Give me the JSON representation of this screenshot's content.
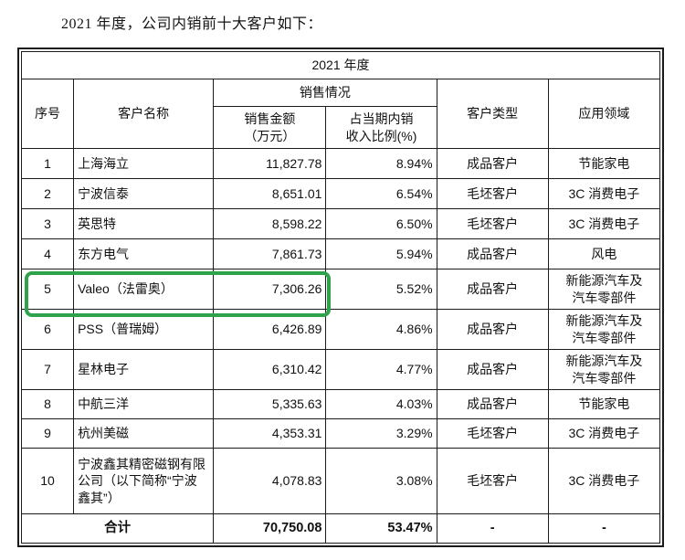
{
  "page": {
    "title": "2021 年度，公司内销前十大客户如下："
  },
  "table": {
    "year_header": "2021 年度",
    "columns": {
      "index": "序号",
      "customer": "客户名称",
      "sales_group": "销售情况",
      "sales_amount": "销售金额\n（万元）",
      "sales_ratio": "占当期内销\n收入比例(%)",
      "customer_type": "客户类型",
      "application": "应用领域"
    },
    "rows": [
      {
        "index": "1",
        "name": "上海海立",
        "amount": "11,827.78",
        "ratio": "8.94%",
        "type": "成品客户",
        "application": "节能家电"
      },
      {
        "index": "2",
        "name": "宁波信泰",
        "amount": "8,651.01",
        "ratio": "6.54%",
        "type": "毛坯客户",
        "application": "3C 消费电子"
      },
      {
        "index": "3",
        "name": "英思特",
        "amount": "8,598.22",
        "ratio": "6.50%",
        "type": "毛坯客户",
        "application": "3C 消费电子"
      },
      {
        "index": "4",
        "name": "东方电气",
        "amount": "7,861.73",
        "ratio": "5.94%",
        "type": "成品客户",
        "application": "风电"
      },
      {
        "index": "5",
        "name": "Valeo（法雷奥）",
        "amount": "7,306.26",
        "ratio": "5.52%",
        "type": "成品客户",
        "application": "新能源汽车及\n汽车零部件"
      },
      {
        "index": "6",
        "name": "PSS（普瑞姆）",
        "amount": "6,426.89",
        "ratio": "4.86%",
        "type": "成品客户",
        "application": "新能源汽车及\n汽车零部件"
      },
      {
        "index": "7",
        "name": "星林电子",
        "amount": "6,310.42",
        "ratio": "4.77%",
        "type": "成品客户",
        "application": "新能源汽车及\n汽车零部件"
      },
      {
        "index": "8",
        "name": "中航三洋",
        "amount": "5,335.63",
        "ratio": "4.03%",
        "type": "成品客户",
        "application": "节能家电"
      },
      {
        "index": "9",
        "name": "杭州美磁",
        "amount": "4,353.31",
        "ratio": "3.29%",
        "type": "毛坯客户",
        "application": "3C 消费电子"
      },
      {
        "index": "10",
        "name": "宁波鑫其精密磁钢有限公司（以下简称“宁波鑫其”）",
        "amount": "4,078.83",
        "ratio": "3.08%",
        "type": "毛坯客户",
        "application": "3C 消费电子"
      }
    ],
    "total": {
      "label": "合计",
      "amount": "70,750.08",
      "ratio": "53.47%",
      "type": "-",
      "application": "-"
    }
  },
  "highlight": {
    "target": "row-5-valeo-first-three-cells",
    "color": "#2fa34b"
  }
}
